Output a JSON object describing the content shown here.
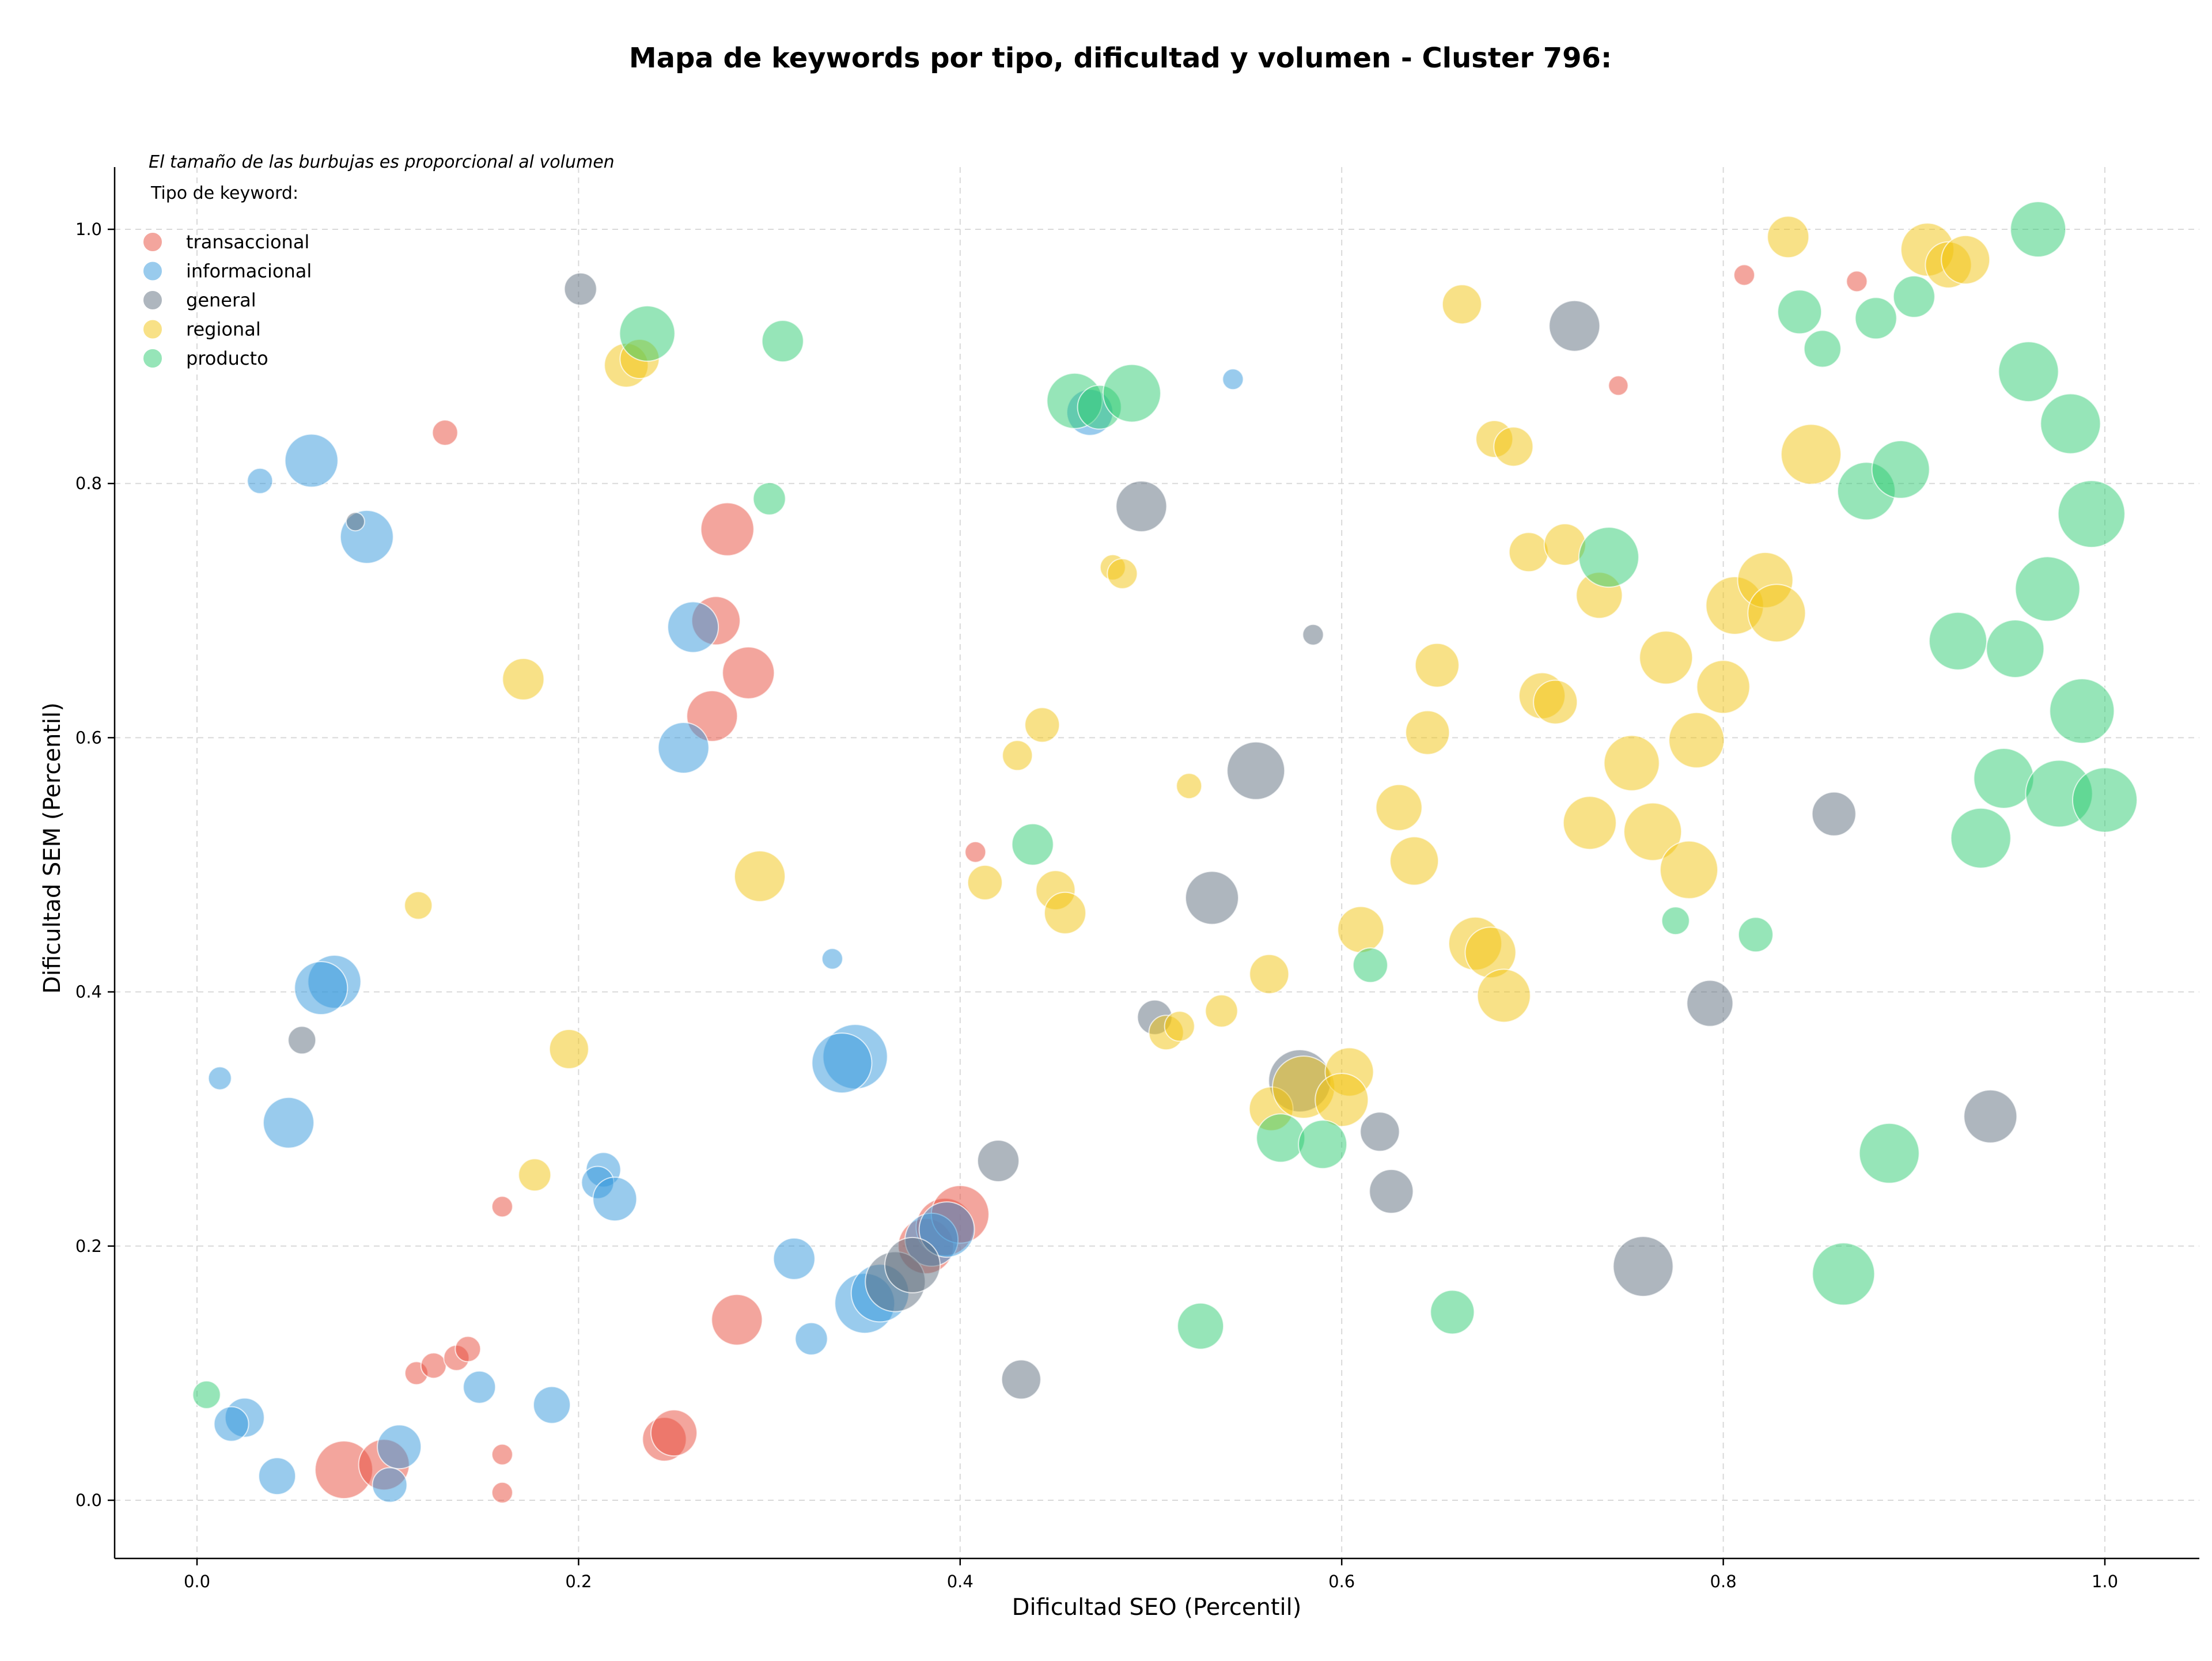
{
  "chart_data": {
    "type": "scatter",
    "title": "Mapa de keywords por tipo, dificultad y volumen - Cluster 796:",
    "xlabel": "Dificultad SEO (Percentil)",
    "ylabel": "Dificultad SEM (Percentil)",
    "xlim": [
      -0.045,
      1.05
    ],
    "ylim": [
      -0.045,
      1.05
    ],
    "xticks": [
      "0.0",
      "0.2",
      "0.4",
      "0.6",
      "0.8",
      "1.0"
    ],
    "yticks": [
      "0.0",
      "0.2",
      "0.4",
      "0.6",
      "0.8",
      "1.0"
    ],
    "grid": true,
    "legend_placement": "top-left",
    "note": "El tamaño de las burbujas es proporcional al volumen",
    "legend_title": "Tipo de keyword:",
    "series": [
      {
        "name": "transaccional",
        "color": "#e74c3c",
        "points": [
          [
            0.13,
            0.84,
            22
          ],
          [
            0.278,
            0.764,
            46
          ],
          [
            0.272,
            0.692,
            42
          ],
          [
            0.289,
            0.651,
            45
          ],
          [
            0.27,
            0.617,
            44
          ],
          [
            0.408,
            0.51,
            18
          ],
          [
            0.16,
            0.231,
            18
          ],
          [
            0.283,
            0.142,
            44
          ],
          [
            0.245,
            0.048,
            38
          ],
          [
            0.25,
            0.053,
            40
          ],
          [
            0.115,
            0.1,
            20
          ],
          [
            0.124,
            0.106,
            22
          ],
          [
            0.136,
            0.112,
            22
          ],
          [
            0.142,
            0.119,
            22
          ],
          [
            0.077,
            0.024,
            50
          ],
          [
            0.098,
            0.028,
            44
          ],
          [
            0.16,
            0.036,
            18
          ],
          [
            0.16,
            0.006,
            18
          ],
          [
            0.382,
            0.2,
            48
          ],
          [
            0.392,
            0.215,
            50
          ],
          [
            0.4,
            0.225,
            50
          ],
          [
            0.745,
            0.877,
            17
          ],
          [
            0.811,
            0.964,
            18
          ],
          [
            0.87,
            0.959,
            18
          ]
        ]
      },
      {
        "name": "informacional",
        "color": "#3498db",
        "points": [
          [
            0.06,
            0.818,
            46
          ],
          [
            0.033,
            0.802,
            22
          ],
          [
            0.089,
            0.758,
            46
          ],
          [
            0.26,
            0.687,
            44
          ],
          [
            0.255,
            0.592,
            44
          ],
          [
            0.072,
            0.408,
            46
          ],
          [
            0.065,
            0.403,
            46
          ],
          [
            0.012,
            0.332,
            20
          ],
          [
            0.048,
            0.297,
            44
          ],
          [
            0.213,
            0.26,
            30
          ],
          [
            0.21,
            0.25,
            28
          ],
          [
            0.219,
            0.237,
            38
          ],
          [
            0.333,
            0.426,
            18
          ],
          [
            0.345,
            0.349,
            56
          ],
          [
            0.338,
            0.344,
            52
          ],
          [
            0.313,
            0.19,
            36
          ],
          [
            0.322,
            0.127,
            28
          ],
          [
            0.186,
            0.075,
            32
          ],
          [
            0.148,
            0.089,
            28
          ],
          [
            0.025,
            0.065,
            34
          ],
          [
            0.018,
            0.06,
            30
          ],
          [
            0.042,
            0.019,
            32
          ],
          [
            0.106,
            0.042,
            38
          ],
          [
            0.101,
            0.012,
            30
          ],
          [
            0.35,
            0.155,
            52
          ],
          [
            0.358,
            0.163,
            50
          ],
          [
            0.385,
            0.205,
            46
          ],
          [
            0.393,
            0.213,
            48
          ],
          [
            0.468,
            0.856,
            40
          ],
          [
            0.543,
            0.882,
            18
          ]
        ]
      },
      {
        "name": "general",
        "color": "#5d6d7e",
        "points": [
          [
            0.201,
            0.953,
            28
          ],
          [
            0.083,
            0.77,
            16
          ],
          [
            0.055,
            0.362,
            24
          ],
          [
            0.366,
            0.172,
            52
          ],
          [
            0.375,
            0.185,
            48
          ],
          [
            0.42,
            0.267,
            36
          ],
          [
            0.432,
            0.095,
            34
          ],
          [
            0.495,
            0.782,
            44
          ],
          [
            0.502,
            0.38,
            30
          ],
          [
            0.532,
            0.474,
            46
          ],
          [
            0.555,
            0.574,
            50
          ],
          [
            0.585,
            0.681,
            18
          ],
          [
            0.578,
            0.33,
            54
          ],
          [
            0.62,
            0.29,
            34
          ],
          [
            0.626,
            0.243,
            38
          ],
          [
            0.722,
            0.924,
            44
          ],
          [
            0.758,
            0.184,
            52
          ],
          [
            0.793,
            0.391,
            40
          ],
          [
            0.858,
            0.54,
            38
          ],
          [
            0.94,
            0.302,
            46
          ]
        ]
      },
      {
        "name": "regional",
        "color": "#f1c40f",
        "points": [
          [
            0.225,
            0.893,
            38
          ],
          [
            0.232,
            0.898,
            34
          ],
          [
            0.171,
            0.646,
            36
          ],
          [
            0.116,
            0.468,
            24
          ],
          [
            0.195,
            0.355,
            34
          ],
          [
            0.177,
            0.256,
            28
          ],
          [
            0.295,
            0.491,
            44
          ],
          [
            0.43,
            0.586,
            26
          ],
          [
            0.443,
            0.61,
            30
          ],
          [
            0.413,
            0.486,
            30
          ],
          [
            0.45,
            0.48,
            34
          ],
          [
            0.455,
            0.462,
            36
          ],
          [
            0.48,
            0.734,
            22
          ],
          [
            0.485,
            0.729,
            26
          ],
          [
            0.52,
            0.562,
            22
          ],
          [
            0.508,
            0.368,
            30
          ],
          [
            0.515,
            0.373,
            26
          ],
          [
            0.537,
            0.385,
            28
          ],
          [
            0.562,
            0.414,
            34
          ],
          [
            0.563,
            0.308,
            38
          ],
          [
            0.58,
            0.325,
            54
          ],
          [
            0.604,
            0.337,
            42
          ],
          [
            0.6,
            0.315,
            46
          ],
          [
            0.61,
            0.449,
            40
          ],
          [
            0.63,
            0.545,
            40
          ],
          [
            0.638,
            0.503,
            42
          ],
          [
            0.645,
            0.604,
            38
          ],
          [
            0.65,
            0.657,
            38
          ],
          [
            0.663,
            0.941,
            34
          ],
          [
            0.68,
            0.835,
            32
          ],
          [
            0.69,
            0.829,
            34
          ],
          [
            0.67,
            0.438,
            46
          ],
          [
            0.678,
            0.431,
            44
          ],
          [
            0.685,
            0.397,
            46
          ],
          [
            0.698,
            0.746,
            34
          ],
          [
            0.705,
            0.633,
            40
          ],
          [
            0.712,
            0.628,
            38
          ],
          [
            0.717,
            0.752,
            36
          ],
          [
            0.735,
            0.712,
            40
          ],
          [
            0.73,
            0.533,
            46
          ],
          [
            0.752,
            0.58,
            48
          ],
          [
            0.763,
            0.526,
            50
          ],
          [
            0.77,
            0.663,
            46
          ],
          [
            0.782,
            0.496,
            50
          ],
          [
            0.786,
            0.598,
            48
          ],
          [
            0.8,
            0.64,
            46
          ],
          [
            0.806,
            0.704,
            50
          ],
          [
            0.822,
            0.724,
            48
          ],
          [
            0.828,
            0.698,
            50
          ],
          [
            0.834,
            0.994,
            36
          ],
          [
            0.846,
            0.823,
            52
          ],
          [
            0.907,
            0.984,
            46
          ],
          [
            0.918,
            0.972,
            40
          ],
          [
            0.927,
            0.976,
            42
          ]
        ]
      },
      {
        "name": "producto",
        "color": "#2ecc71",
        "points": [
          [
            0.236,
            0.918,
            48
          ],
          [
            0.307,
            0.912,
            36
          ],
          [
            0.3,
            0.788,
            28
          ],
          [
            0.005,
            0.083,
            24
          ],
          [
            0.438,
            0.516,
            36
          ],
          [
            0.46,
            0.865,
            48
          ],
          [
            0.473,
            0.86,
            38
          ],
          [
            0.49,
            0.871,
            50
          ],
          [
            0.526,
            0.137,
            40
          ],
          [
            0.568,
            0.285,
            42
          ],
          [
            0.59,
            0.28,
            42
          ],
          [
            0.615,
            0.421,
            30
          ],
          [
            0.658,
            0.148,
            38
          ],
          [
            0.74,
            0.742,
            52
          ],
          [
            0.775,
            0.456,
            24
          ],
          [
            0.817,
            0.445,
            30
          ],
          [
            0.84,
            0.935,
            38
          ],
          [
            0.852,
            0.906,
            32
          ],
          [
            0.863,
            0.178,
            54
          ],
          [
            0.875,
            0.794,
            50
          ],
          [
            0.88,
            0.93,
            36
          ],
          [
            0.887,
            0.273,
            52
          ],
          [
            0.893,
            0.811,
            50
          ],
          [
            0.9,
            0.947,
            36
          ],
          [
            0.923,
            0.676,
            50
          ],
          [
            0.935,
            0.521,
            52
          ],
          [
            0.947,
            0.568,
            52
          ],
          [
            0.953,
            0.67,
            50
          ],
          [
            0.96,
            0.888,
            52
          ],
          [
            0.965,
            1.0,
            48
          ],
          [
            0.97,
            0.717,
            56
          ],
          [
            0.976,
            0.556,
            58
          ],
          [
            0.982,
            0.847,
            52
          ],
          [
            0.988,
            0.621,
            56
          ],
          [
            0.993,
            0.776,
            58
          ],
          [
            1.0,
            0.551,
            56
          ]
        ]
      }
    ]
  }
}
